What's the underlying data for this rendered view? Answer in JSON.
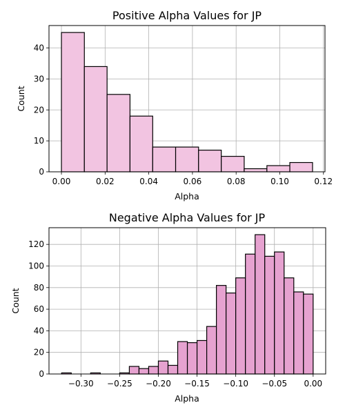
{
  "chart_data": [
    {
      "type": "bar",
      "title": "Positive Alpha Values for JP",
      "xlabel": "Alpha",
      "ylabel": "Count",
      "bar_color": "#f2c4e1",
      "edge_color": "#000000",
      "grid": true,
      "bins": [
        {
          "x0": 0.0,
          "x1": 0.0105,
          "count": 45
        },
        {
          "x0": 0.0105,
          "x1": 0.0209,
          "count": 34
        },
        {
          "x0": 0.0209,
          "x1": 0.0314,
          "count": 25
        },
        {
          "x0": 0.0314,
          "x1": 0.0418,
          "count": 18
        },
        {
          "x0": 0.0418,
          "x1": 0.0523,
          "count": 8
        },
        {
          "x0": 0.0523,
          "x1": 0.0628,
          "count": 8
        },
        {
          "x0": 0.0628,
          "x1": 0.0732,
          "count": 7
        },
        {
          "x0": 0.0732,
          "x1": 0.0837,
          "count": 5
        },
        {
          "x0": 0.0837,
          "x1": 0.0941,
          "count": 1
        },
        {
          "x0": 0.0941,
          "x1": 0.1046,
          "count": 2
        },
        {
          "x0": 0.1046,
          "x1": 0.115,
          "count": 3
        }
      ],
      "xlim": [
        -0.0057,
        0.1207
      ],
      "ylim": [
        0,
        47.25
      ],
      "xticks": [
        0.0,
        0.02,
        0.04,
        0.06,
        0.08,
        0.1,
        0.12
      ],
      "xtick_labels": [
        "0.00",
        "0.02",
        "0.04",
        "0.06",
        "0.08",
        "0.10",
        "0.12"
      ],
      "yticks": [
        0,
        10,
        20,
        30,
        40
      ],
      "ytick_labels": [
        "0",
        "10",
        "20",
        "30",
        "40"
      ]
    },
    {
      "type": "bar",
      "title": "Negative Alpha Values for JP",
      "xlabel": "Alpha",
      "ylabel": "Count",
      "bar_color": "#e6a2d0",
      "edge_color": "#000000",
      "grid": true,
      "bin_edges": [
        -0.325,
        -0.3125,
        -0.3,
        -0.2875,
        -0.275,
        -0.2625,
        -0.25,
        -0.2375,
        -0.225,
        -0.2125,
        -0.2,
        -0.1875,
        -0.175,
        -0.1625,
        -0.15,
        -0.1375,
        -0.125,
        -0.1125,
        -0.1,
        -0.0875,
        -0.075,
        -0.0625,
        -0.05,
        -0.0375,
        -0.025,
        -0.0125,
        0.0
      ],
      "counts": [
        1,
        0,
        0,
        1,
        0,
        0,
        1,
        7,
        5,
        7,
        12,
        8,
        30,
        29,
        31,
        44,
        82,
        75,
        89,
        111,
        129,
        109,
        113,
        89,
        76,
        74
      ],
      "xlim": [
        -0.3413,
        0.0162
      ],
      "ylim": [
        0,
        135.45
      ],
      "xticks": [
        -0.3,
        -0.25,
        -0.2,
        -0.15,
        -0.1,
        -0.05,
        0.0
      ],
      "xtick_labels": [
        "−0.30",
        "−0.25",
        "−0.20",
        "−0.15",
        "−0.10",
        "−0.05",
        "0.00"
      ],
      "yticks": [
        0,
        20,
        40,
        60,
        80,
        100,
        120
      ],
      "ytick_labels": [
        "0",
        "20",
        "40",
        "60",
        "80",
        "100",
        "120"
      ]
    }
  ]
}
